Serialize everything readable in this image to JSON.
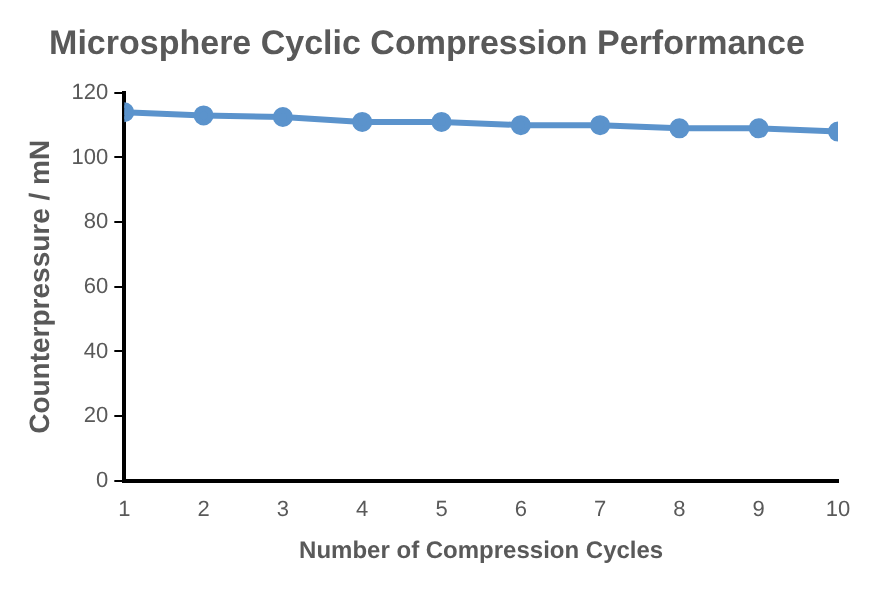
{
  "chart_data": {
    "type": "line",
    "title": "Microsphere Cyclic Compression Performance",
    "xlabel": "Number of Compression Cycles",
    "ylabel": "Counterpressure / mN",
    "x": [
      1,
      2,
      3,
      4,
      5,
      6,
      7,
      8,
      9,
      10
    ],
    "series": [
      {
        "color": "#5b93cc",
        "values": [
          114,
          113,
          112.5,
          111,
          111,
          110,
          110,
          109,
          109,
          108
        ]
      }
    ],
    "xlim": [
      1,
      10
    ],
    "xticks": [
      1,
      2,
      3,
      4,
      5,
      6,
      7,
      8,
      9,
      10
    ],
    "ylim": [
      0,
      120
    ],
    "yticks": [
      0,
      20,
      40,
      60,
      80,
      100,
      120
    ],
    "grid": false,
    "legend": false,
    "marker": "circle",
    "line_style": "solid"
  }
}
